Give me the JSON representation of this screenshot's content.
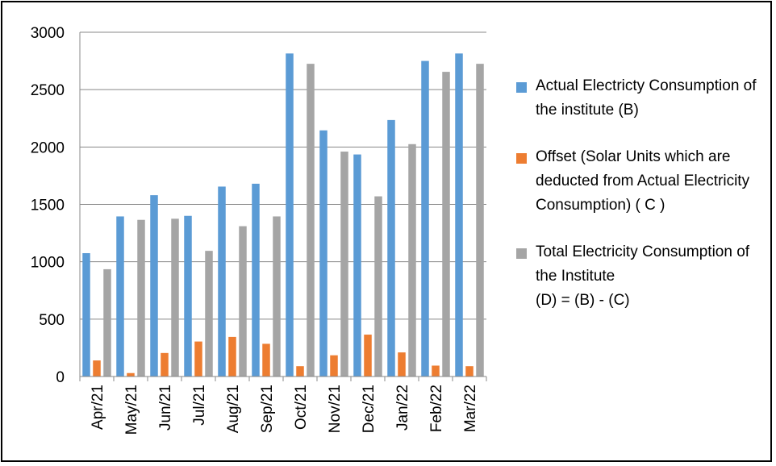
{
  "chart_data": {
    "type": "bar",
    "categories": [
      "Apr/21",
      "May/21",
      "Jun/21",
      "Jul/21",
      "Aug/21",
      "Sep/21",
      "Oct/21",
      "Nov/21",
      "Dec/21",
      "Jan/22",
      "Feb/22",
      "Mar/22"
    ],
    "series": [
      {
        "name": "Actual Electricty Consumption of the institute (B)",
        "color": "#5B9BD5",
        "values": [
          1075,
          1395,
          1580,
          1400,
          1655,
          1680,
          2815,
          2145,
          1935,
          2235,
          2750,
          2815
        ]
      },
      {
        "name": "Offset (Solar Units which are deducted from Actual Electricity Consumption) ( C )",
        "color": "#ED7D31",
        "values": [
          140,
          30,
          205,
          305,
          345,
          285,
          90,
          185,
          365,
          210,
          95,
          90
        ]
      },
      {
        "name": "Total Electricity Consumption of the Institute\n(D) = (B) - (C)",
        "color": "#A5A5A5",
        "values": [
          935,
          1365,
          1375,
          1095,
          1310,
          1395,
          2725,
          1960,
          1570,
          2025,
          2655,
          2725
        ]
      }
    ],
    "yticks": [
      0,
      500,
      1000,
      1500,
      2000,
      2500,
      3000
    ],
    "ylim": [
      0,
      3000
    ],
    "grid": true,
    "legend_position": "right"
  }
}
